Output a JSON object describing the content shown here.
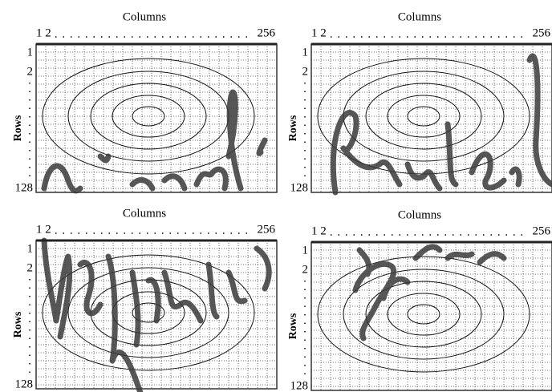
{
  "panels": [
    {
      "title": "Columns",
      "col_first": "1 2",
      "col_last": "256",
      "rows_label": "Rows",
      "row_labels": [
        "1",
        "2",
        "128"
      ]
    },
    {
      "title": "Columns",
      "col_first": "1 2",
      "col_last": "256",
      "rows_label": "Rows",
      "row_labels": [
        "1",
        "2",
        "128"
      ]
    },
    {
      "title": "Columns",
      "col_first": "1 2",
      "col_last": "256",
      "rows_label": "Rows",
      "row_labels": [
        "1",
        "2",
        "128"
      ]
    },
    {
      "title": "Columns",
      "col_first": "1 2",
      "col_last": "256",
      "rows_label": "Rows",
      "row_labels": [
        "1",
        "2",
        "128"
      ]
    }
  ]
}
